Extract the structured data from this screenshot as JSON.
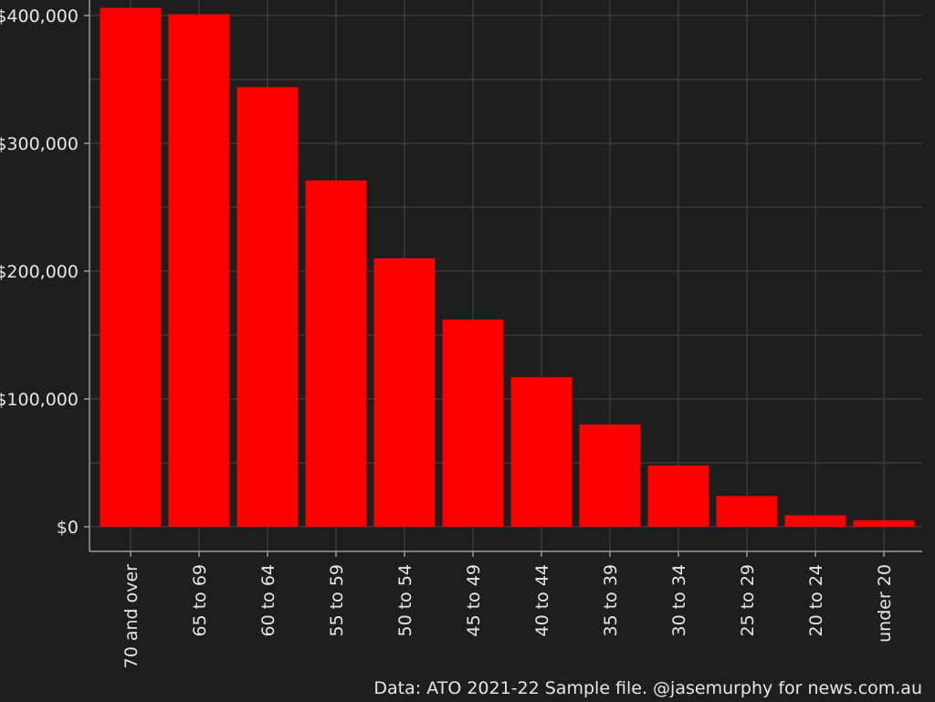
{
  "chart_data": {
    "type": "bar",
    "categories": [
      "70 and over",
      "65 to 69",
      "60 to 64",
      "55 to 59",
      "50 to 54",
      "45 to 49",
      "40 to 44",
      "35 to 39",
      "30 to 34",
      "25 to 29",
      "20 to 24",
      "under 20"
    ],
    "values": [
      406000,
      401000,
      344000,
      271000,
      210000,
      162000,
      117000,
      80000,
      48000,
      24000,
      9000,
      5000
    ],
    "ylim": [
      0,
      410000
    ],
    "yticks": [
      0,
      100000,
      200000,
      300000,
      400000
    ],
    "ytick_labels": [
      "$0",
      "$100,000",
      "$200,000",
      "$300,000",
      "$400,000"
    ],
    "grid": true,
    "title": "",
    "xlabel": "",
    "ylabel": "",
    "colors": {
      "bar": "#ff0000",
      "background": "#1e1e1e",
      "grid": "#454545",
      "axis": "#9a9a9a",
      "text": "#e6e6e6"
    }
  },
  "caption": "Data: ATO 2021-22 Sample file. @jasemurphy for news.com.au"
}
